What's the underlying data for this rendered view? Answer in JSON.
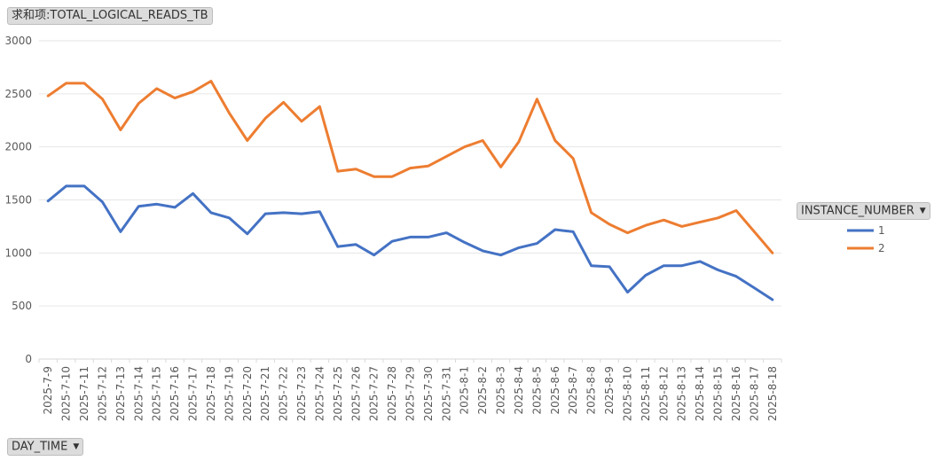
{
  "value_field": {
    "label": "求和项:TOTAL_LOGICAL_READS_TB"
  },
  "legend_field": {
    "label": "INSTANCE_NUMBER",
    "arrow": "▼"
  },
  "axis_field": {
    "label": "DAY_TIME",
    "arrow": "▼"
  },
  "chart_data": {
    "type": "line",
    "title": "",
    "xlabel": "",
    "ylabel": "",
    "ylim": [
      0,
      3000
    ],
    "yticks": [
      0,
      500,
      1000,
      1500,
      2000,
      2500,
      3000
    ],
    "grid": true,
    "legend_position": "right",
    "categories": [
      "2025-7-9",
      "2025-7-10",
      "2025-7-11",
      "2025-7-12",
      "2025-7-13",
      "2025-7-14",
      "2025-7-15",
      "2025-7-16",
      "2025-7-17",
      "2025-7-18",
      "2025-7-19",
      "2025-7-20",
      "2025-7-21",
      "2025-7-22",
      "2025-7-23",
      "2025-7-24",
      "2025-7-25",
      "2025-7-26",
      "2025-7-27",
      "2025-7-28",
      "2025-7-29",
      "2025-7-30",
      "2025-7-31",
      "2025-8-1",
      "2025-8-2",
      "2025-8-3",
      "2025-8-4",
      "2025-8-5",
      "2025-8-6",
      "2025-8-7",
      "2025-8-8",
      "2025-8-9",
      "2025-8-10",
      "2025-8-11",
      "2025-8-12",
      "2025-8-13",
      "2025-8-14",
      "2025-8-15",
      "2025-8-16",
      "2025-8-17",
      "2025-8-18"
    ],
    "series": [
      {
        "name": "1",
        "color": "#4472C4",
        "values": [
          1490,
          1630,
          1630,
          1480,
          1200,
          1440,
          1460,
          1430,
          1560,
          1380,
          1330,
          1180,
          1370,
          1380,
          1370,
          1390,
          1060,
          1080,
          980,
          1110,
          1150,
          1150,
          1190,
          1100,
          1020,
          980,
          1050,
          1090,
          1220,
          1200,
          880,
          870,
          630,
          790,
          880,
          880,
          920,
          840,
          780,
          670,
          560
        ]
      },
      {
        "name": "2",
        "color": "#ED7D31",
        "values": [
          2480,
          2600,
          2600,
          2450,
          2160,
          2410,
          2550,
          2460,
          2520,
          2620,
          2320,
          2060,
          2270,
          2420,
          2240,
          2380,
          1770,
          1790,
          1720,
          1720,
          1800,
          1820,
          1910,
          2000,
          2060,
          1810,
          2050,
          2450,
          2060,
          1890,
          1380,
          1270,
          1190,
          1260,
          1310,
          1250,
          1290,
          1330,
          1400,
          1200,
          1000
        ]
      }
    ]
  }
}
